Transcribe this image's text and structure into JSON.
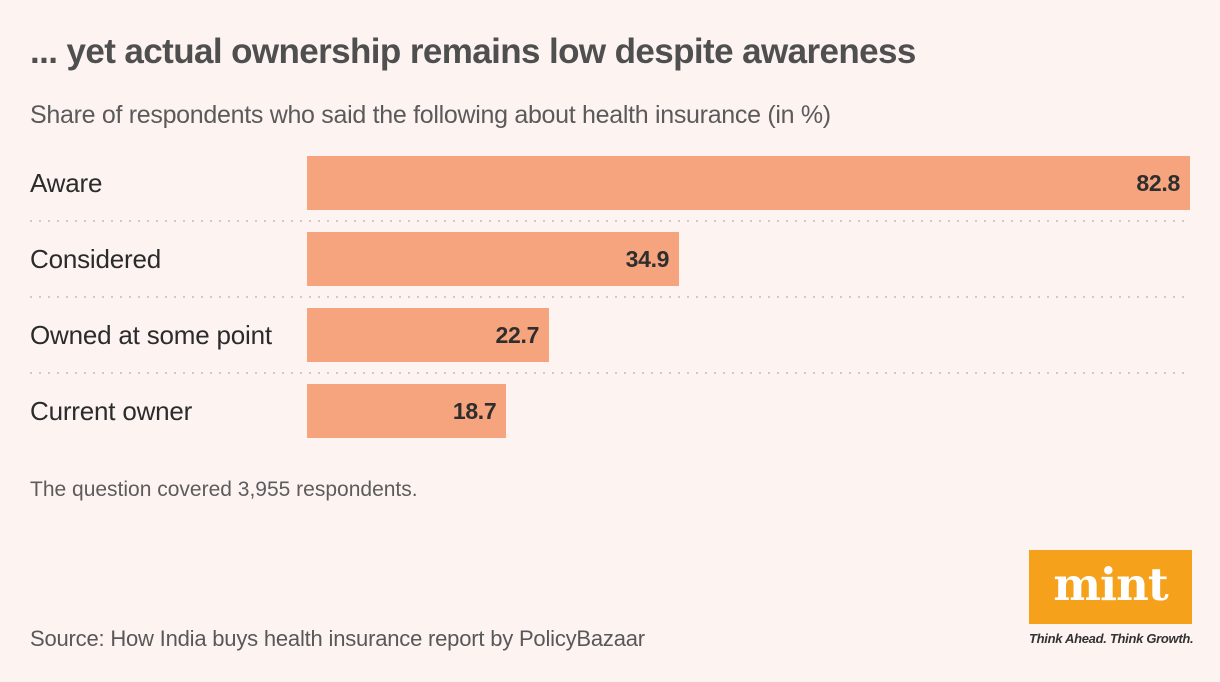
{
  "header": {
    "title": "... yet actual ownership remains low despite awareness",
    "subtitle": "Share of respondents who said the following about health insurance (in %)"
  },
  "chart_data": {
    "type": "bar",
    "orientation": "horizontal",
    "title": "... yet actual ownership remains low despite awareness",
    "subtitle": "Share of respondents who said the following about health insurance (in %)",
    "categories": [
      "Aware",
      "Considered",
      "Owned at some point",
      "Current owner"
    ],
    "values": [
      82.8,
      34.9,
      22.7,
      18.7
    ],
    "unit": "%",
    "xlabel": "",
    "ylabel": "",
    "xlim": [
      0,
      82.8
    ],
    "grid": false,
    "value_label_position": "inside-end",
    "row_separator_style": "dotted"
  },
  "footer": {
    "note": "The question covered 3,955 respondents.",
    "source": "Source: How India buys health insurance report by PolicyBazaar"
  },
  "branding": {
    "logo_text": "mint",
    "tagline": "Think Ahead. Think Growth."
  },
  "colors": {
    "background": "#fdf4f2",
    "bar": "#f6a47e",
    "title": "#4f4f4f",
    "subtitle": "#5a5a5a",
    "category_label": "#2b2b2b",
    "value_label": "#2e2e2e",
    "separator": "#d0cac8",
    "logo_background": "#f6a11c",
    "logo_text": "#ffffff"
  }
}
